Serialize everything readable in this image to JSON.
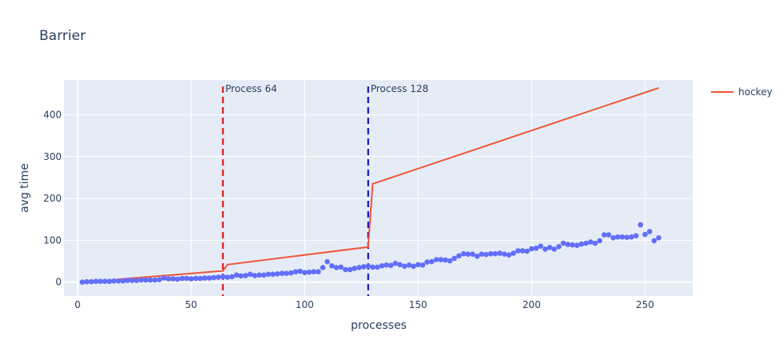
{
  "chart_data": {
    "type": "line",
    "title": "Barrier",
    "xlabel": "processes",
    "ylabel": "avg time",
    "xlim": [
      -6,
      271
    ],
    "ylim": [
      -33,
      483
    ],
    "xticks": [
      0,
      50,
      100,
      150,
      200,
      250
    ],
    "yticks": [
      0,
      100,
      200,
      300,
      400
    ],
    "grid": true,
    "legend_position": "top-right",
    "colors": {
      "background": "#e5ecf6",
      "grid": "#ffffff",
      "line": "#EF553B",
      "scatter": "#636efa",
      "vline_64": "#dd0000",
      "vline_128": "#0000cc"
    },
    "series": [
      {
        "name": "hockey",
        "type": "line",
        "x": [
          2,
          16,
          18,
          64,
          66,
          128,
          130,
          256
        ],
        "y": [
          0,
          4,
          7,
          27,
          42,
          84,
          235,
          464
        ]
      },
      {
        "type": "scatter",
        "x": [
          2,
          4,
          6,
          8,
          10,
          12,
          14,
          16,
          18,
          20,
          22,
          24,
          26,
          28,
          30,
          32,
          34,
          36,
          38,
          40,
          42,
          44,
          46,
          48,
          50,
          52,
          54,
          56,
          58,
          60,
          62,
          64,
          66,
          68,
          70,
          72,
          74,
          76,
          78,
          80,
          82,
          84,
          86,
          88,
          90,
          92,
          94,
          96,
          98,
          100,
          102,
          104,
          106,
          108,
          110,
          112,
          114,
          116,
          118,
          120,
          122,
          124,
          126,
          128,
          130,
          132,
          134,
          136,
          138,
          140,
          142,
          144,
          146,
          148,
          150,
          152,
          154,
          156,
          158,
          160,
          162,
          164,
          166,
          168,
          170,
          172,
          174,
          176,
          178,
          180,
          182,
          184,
          186,
          188,
          190,
          192,
          194,
          196,
          198,
          200,
          202,
          204,
          206,
          208,
          210,
          212,
          214,
          216,
          218,
          220,
          222,
          224,
          226,
          228,
          230,
          232,
          234,
          236,
          238,
          240,
          242,
          244,
          246,
          248,
          250,
          252,
          254,
          256
        ],
        "y": [
          0,
          1,
          1,
          2,
          2,
          2,
          2,
          3,
          3,
          3,
          4,
          4,
          4,
          5,
          5,
          5,
          5,
          6,
          10,
          8,
          8,
          7,
          9,
          9,
          8,
          9,
          9,
          10,
          10,
          11,
          12,
          13,
          12,
          13,
          17,
          15,
          16,
          19,
          16,
          17,
          17,
          19,
          19,
          20,
          21,
          21,
          22,
          25,
          26,
          23,
          24,
          25,
          25,
          35,
          49,
          39,
          35,
          36,
          30,
          30,
          33,
          35,
          37,
          38,
          36,
          36,
          39,
          41,
          40,
          45,
          42,
          38,
          41,
          38,
          42,
          41,
          48,
          49,
          54,
          54,
          53,
          51,
          57,
          63,
          68,
          67,
          67,
          62,
          67,
          66,
          68,
          68,
          69,
          67,
          65,
          69,
          75,
          75,
          74,
          80,
          81,
          86,
          79,
          83,
          79,
          85,
          93,
          90,
          89,
          88,
          91,
          93,
          96,
          93,
          99,
          113,
          113,
          106,
          108,
          108,
          107,
          108,
          111,
          137,
          114,
          121,
          99,
          106
        ]
      }
    ],
    "annotations": [
      {
        "x": 64,
        "text": "Process 64"
      },
      {
        "x": 128,
        "text": "Process 128"
      }
    ]
  }
}
